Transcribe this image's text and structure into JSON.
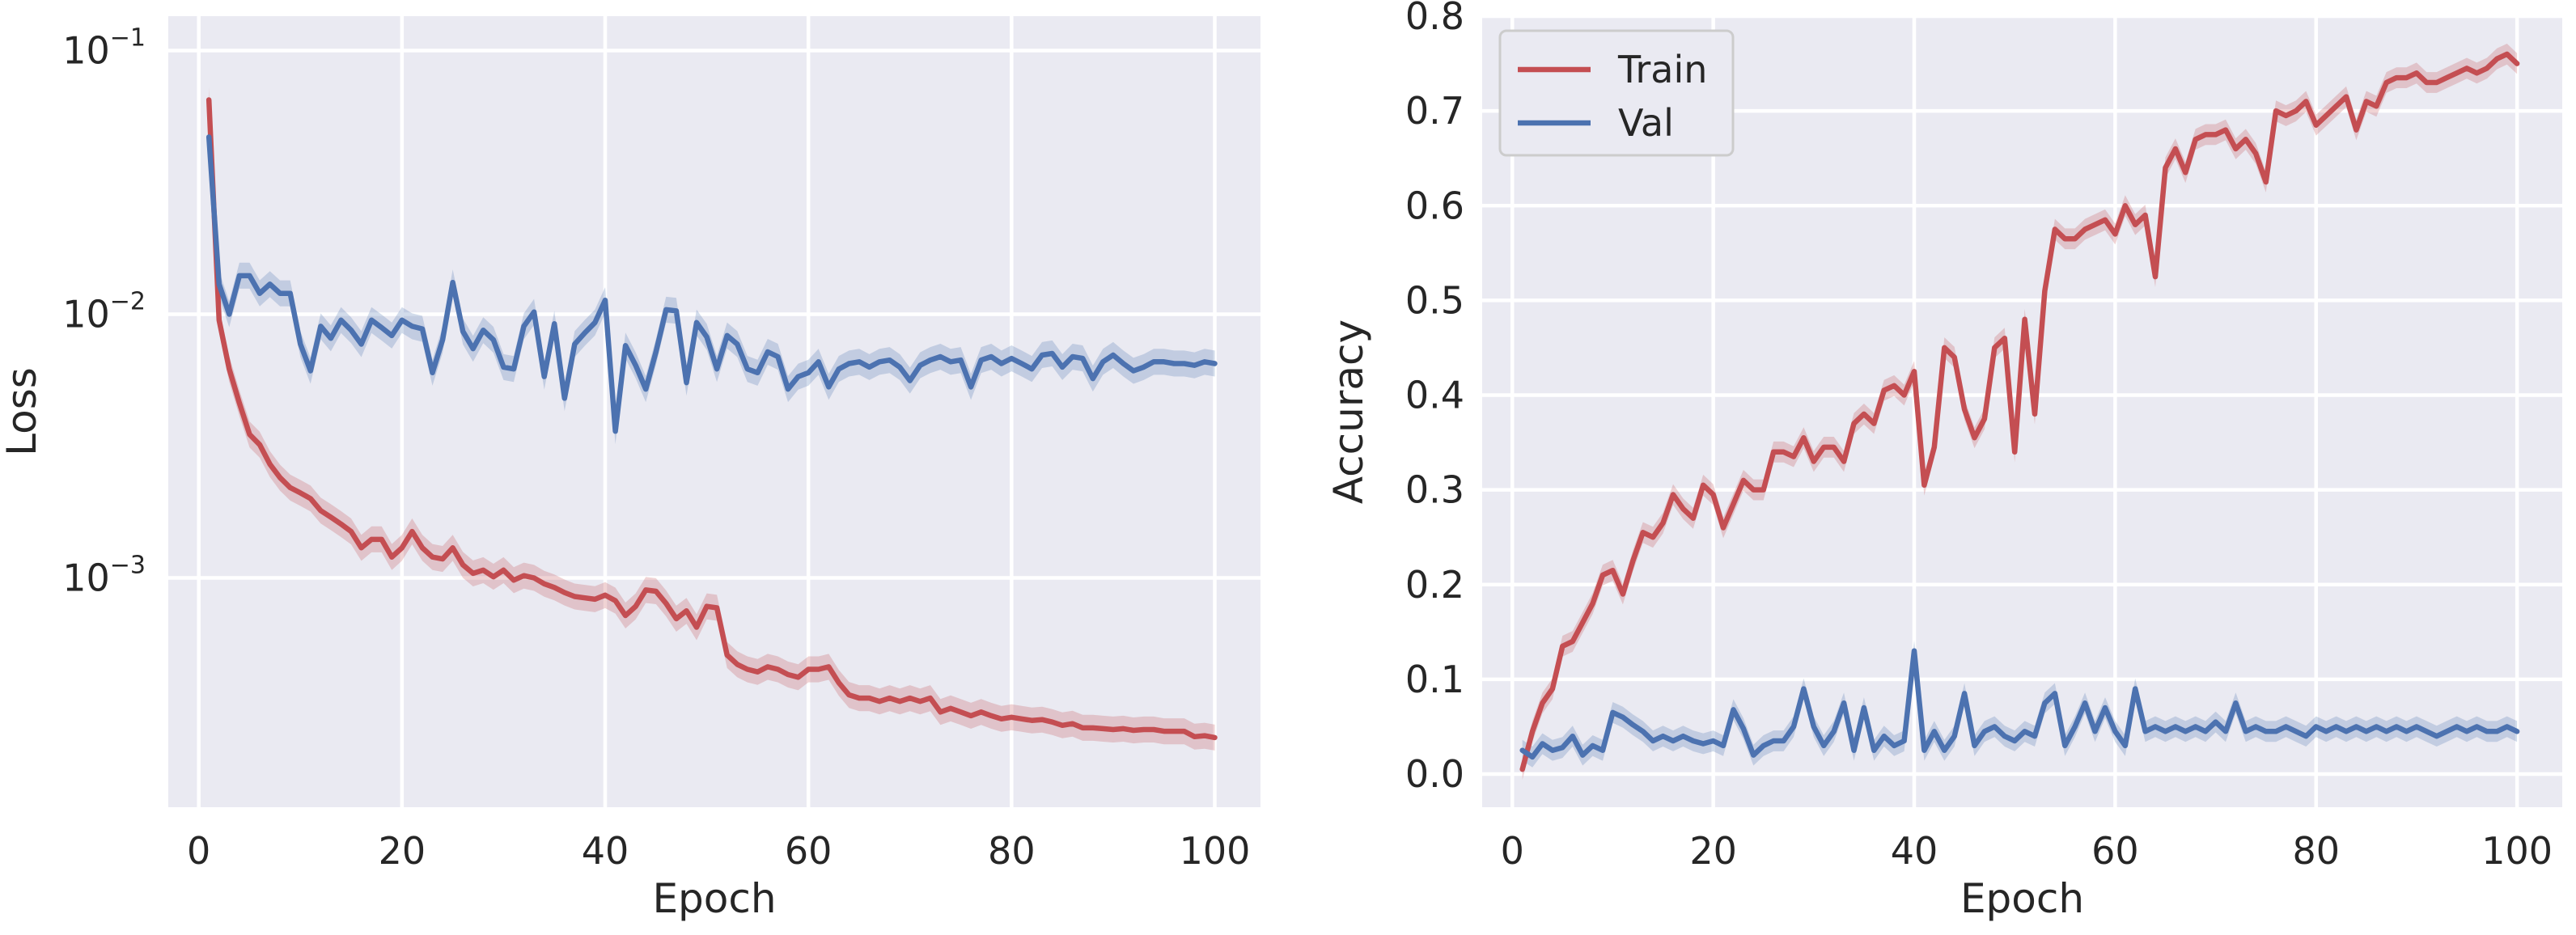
{
  "colors": {
    "train": "#c44e52",
    "val": "#4c72b0"
  },
  "chart_data": [
    {
      "type": "line",
      "panel": "left",
      "title": "",
      "xlabel": "Epoch",
      "ylabel": "Loss",
      "yscale": "log",
      "xlim": [
        -3,
        104.5
      ],
      "ylim": [
        0.000135,
        0.135
      ],
      "xticks": [
        0,
        20,
        40,
        60,
        80,
        100
      ],
      "xtick_labels": [
        "0",
        "20",
        "40",
        "60",
        "80",
        "100"
      ],
      "yticks": [
        0.1,
        0.01,
        0.001
      ],
      "ytick_labels": [
        {
          "base": "10",
          "exp": "−1"
        },
        {
          "base": "10",
          "exp": "−2"
        },
        {
          "base": "10",
          "exp": "−3"
        }
      ],
      "grid": true,
      "legend": null,
      "band": "shaded spread around each series",
      "x": [
        1,
        2,
        3,
        4,
        5,
        6,
        7,
        8,
        9,
        10,
        11,
        12,
        13,
        14,
        15,
        16,
        17,
        18,
        19,
        20,
        21,
        22,
        23,
        24,
        25,
        26,
        27,
        28,
        29,
        30,
        31,
        32,
        33,
        34,
        35,
        36,
        37,
        38,
        39,
        40,
        41,
        42,
        43,
        44,
        45,
        46,
        47,
        48,
        49,
        50,
        51,
        52,
        53,
        54,
        55,
        56,
        57,
        58,
        59,
        60,
        61,
        62,
        63,
        64,
        65,
        66,
        67,
        68,
        69,
        70,
        71,
        72,
        73,
        74,
        75,
        76,
        77,
        78,
        79,
        80,
        81,
        82,
        83,
        84,
        85,
        86,
        87,
        88,
        89,
        90,
        91,
        92,
        93,
        94,
        95,
        96,
        97,
        98,
        99,
        100
      ],
      "series": [
        {
          "name": "Train",
          "color_key": "train",
          "values": [
            0.065,
            0.0095,
            0.0062,
            0.0046,
            0.0035,
            0.0032,
            0.0027,
            0.0024,
            0.0022,
            0.0021,
            0.002,
            0.0018,
            0.0017,
            0.0016,
            0.0015,
            0.0013,
            0.0014,
            0.0014,
            0.0012,
            0.0013,
            0.0015,
            0.0013,
            0.0012,
            0.00118,
            0.0013,
            0.00112,
            0.00104,
            0.00107,
            0.00101,
            0.00107,
            0.00098,
            0.00102,
            0.001,
            0.00095,
            0.00092,
            0.00088,
            0.00085,
            0.00084,
            0.00083,
            0.00086,
            0.00082,
            0.00072,
            0.00078,
            0.0009,
            0.00089,
            0.0008,
            0.0007,
            0.00075,
            0.00065,
            0.00078,
            0.00077,
            0.00051,
            0.00047,
            0.00045,
            0.00044,
            0.00046,
            0.00045,
            0.00043,
            0.00042,
            0.00045,
            0.00045,
            0.00046,
            0.0004,
            0.00036,
            0.00035,
            0.00035,
            0.00034,
            0.00035,
            0.00034,
            0.00035,
            0.00034,
            0.00035,
            0.00031,
            0.00032,
            0.00031,
            0.0003,
            0.00031,
            0.0003,
            0.000292,
            0.000296,
            0.000292,
            0.000288,
            0.00029,
            0.000284,
            0.000276,
            0.00028,
            0.00027,
            0.00027,
            0.000268,
            0.000266,
            0.000268,
            0.000264,
            0.000266,
            0.000266,
            0.000262,
            0.000262,
            0.000262,
            0.00025,
            0.000252,
            0.000248
          ]
        },
        {
          "name": "Val",
          "color_key": "val",
          "values": [
            0.047,
            0.013,
            0.01,
            0.014,
            0.014,
            0.012,
            0.013,
            0.012,
            0.012,
            0.0077,
            0.0061,
            0.009,
            0.0081,
            0.0095,
            0.0087,
            0.0077,
            0.0095,
            0.0089,
            0.0083,
            0.0095,
            0.009,
            0.0088,
            0.006,
            0.008,
            0.0132,
            0.0086,
            0.0074,
            0.0087,
            0.008,
            0.0063,
            0.0062,
            0.009,
            0.0102,
            0.0058,
            0.0092,
            0.0048,
            0.0077,
            0.0085,
            0.0093,
            0.0113,
            0.0036,
            0.0076,
            0.0064,
            0.0052,
            0.0072,
            0.0104,
            0.0103,
            0.0055,
            0.0093,
            0.0082,
            0.0062,
            0.0083,
            0.0077,
            0.0062,
            0.006,
            0.0072,
            0.0069,
            0.0052,
            0.0058,
            0.006,
            0.0066,
            0.0053,
            0.0062,
            0.0065,
            0.0066,
            0.0063,
            0.0066,
            0.0067,
            0.0063,
            0.0056,
            0.0064,
            0.0067,
            0.0069,
            0.0066,
            0.0067,
            0.0053,
            0.0067,
            0.0069,
            0.0065,
            0.0068,
            0.0065,
            0.0062,
            0.007,
            0.0071,
            0.0063,
            0.0069,
            0.0068,
            0.0057,
            0.0066,
            0.007,
            0.0065,
            0.0061,
            0.0063,
            0.0066,
            0.0066,
            0.0065,
            0.0065,
            0.0064,
            0.0066,
            0.0065
          ]
        }
      ]
    },
    {
      "type": "line",
      "panel": "right",
      "title": "",
      "xlabel": "Epoch",
      "ylabel": "Accuracy",
      "yscale": "linear",
      "xlim": [
        -3,
        104.5
      ],
      "ylim": [
        -0.035,
        0.8
      ],
      "xticks": [
        0,
        20,
        40,
        60,
        80,
        100
      ],
      "xtick_labels": [
        "0",
        "20",
        "40",
        "60",
        "80",
        "100"
      ],
      "yticks": [
        0.0,
        0.1,
        0.2,
        0.3,
        0.4,
        0.5,
        0.6,
        0.7,
        0.8
      ],
      "ytick_labels": [
        "0.0",
        "0.1",
        "0.2",
        "0.3",
        "0.4",
        "0.5",
        "0.6",
        "0.7",
        "0.8"
      ],
      "grid": true,
      "legend": {
        "placement": "top-left",
        "entries": [
          "Train",
          "Val"
        ]
      },
      "band": "shaded spread around each series",
      "x": [
        1,
        2,
        3,
        4,
        5,
        6,
        7,
        8,
        9,
        10,
        11,
        12,
        13,
        14,
        15,
        16,
        17,
        18,
        19,
        20,
        21,
        22,
        23,
        24,
        25,
        26,
        27,
        28,
        29,
        30,
        31,
        32,
        33,
        34,
        35,
        36,
        37,
        38,
        39,
        40,
        41,
        42,
        43,
        44,
        45,
        46,
        47,
        48,
        49,
        50,
        51,
        52,
        53,
        54,
        55,
        56,
        57,
        58,
        59,
        60,
        61,
        62,
        63,
        64,
        65,
        66,
        67,
        68,
        69,
        70,
        71,
        72,
        73,
        74,
        75,
        76,
        77,
        78,
        79,
        80,
        81,
        82,
        83,
        84,
        85,
        86,
        87,
        88,
        89,
        90,
        91,
        92,
        93,
        94,
        95,
        96,
        97,
        98,
        99,
        100
      ],
      "series": [
        {
          "name": "Train",
          "color_key": "train",
          "values": [
            0.005,
            0.045,
            0.075,
            0.09,
            0.135,
            0.14,
            0.16,
            0.18,
            0.21,
            0.215,
            0.19,
            0.225,
            0.255,
            0.25,
            0.265,
            0.295,
            0.28,
            0.27,
            0.305,
            0.295,
            0.26,
            0.285,
            0.31,
            0.3,
            0.3,
            0.34,
            0.34,
            0.335,
            0.355,
            0.33,
            0.345,
            0.345,
            0.33,
            0.37,
            0.38,
            0.37,
            0.405,
            0.41,
            0.4,
            0.425,
            0.305,
            0.345,
            0.45,
            0.44,
            0.385,
            0.355,
            0.375,
            0.45,
            0.46,
            0.34,
            0.48,
            0.38,
            0.51,
            0.575,
            0.565,
            0.565,
            0.575,
            0.58,
            0.585,
            0.57,
            0.6,
            0.58,
            0.59,
            0.525,
            0.64,
            0.66,
            0.635,
            0.67,
            0.675,
            0.675,
            0.68,
            0.66,
            0.67,
            0.655,
            0.625,
            0.7,
            0.695,
            0.7,
            0.71,
            0.685,
            0.695,
            0.705,
            0.715,
            0.68,
            0.71,
            0.705,
            0.73,
            0.735,
            0.735,
            0.74,
            0.73,
            0.73,
            0.735,
            0.74,
            0.745,
            0.74,
            0.745,
            0.755,
            0.76,
            0.75
          ]
        },
        {
          "name": "Val",
          "color_key": "val",
          "values": [
            0.025,
            0.018,
            0.032,
            0.025,
            0.028,
            0.04,
            0.02,
            0.03,
            0.025,
            0.065,
            0.06,
            0.052,
            0.045,
            0.035,
            0.04,
            0.035,
            0.04,
            0.035,
            0.032,
            0.035,
            0.03,
            0.068,
            0.048,
            0.02,
            0.03,
            0.035,
            0.035,
            0.05,
            0.09,
            0.05,
            0.03,
            0.045,
            0.075,
            0.025,
            0.07,
            0.025,
            0.04,
            0.03,
            0.035,
            0.13,
            0.025,
            0.045,
            0.025,
            0.04,
            0.085,
            0.03,
            0.045,
            0.05,
            0.04,
            0.035,
            0.045,
            0.04,
            0.075,
            0.085,
            0.03,
            0.05,
            0.075,
            0.045,
            0.07,
            0.045,
            0.03,
            0.09,
            0.045,
            0.05,
            0.045,
            0.05,
            0.045,
            0.05,
            0.045,
            0.055,
            0.045,
            0.075,
            0.045,
            0.05,
            0.045,
            0.045,
            0.05,
            0.045,
            0.04,
            0.05,
            0.045,
            0.05,
            0.045,
            0.05,
            0.045,
            0.05,
            0.045,
            0.05,
            0.045,
            0.05,
            0.045,
            0.04,
            0.045,
            0.05,
            0.045,
            0.05,
            0.045,
            0.045,
            0.05,
            0.045
          ]
        }
      ]
    }
  ]
}
